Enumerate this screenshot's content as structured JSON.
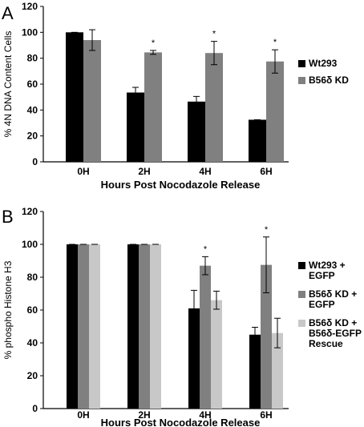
{
  "chart_data": [
    {
      "panel_label": "A",
      "type": "bar",
      "categories": [
        "0H",
        "2H",
        "4H",
        "6H"
      ],
      "xlabel": "Hours Post Nocodazole Release",
      "ylabel": "% 4N DNA Content Cells",
      "ylim": [
        0,
        120
      ],
      "yticks": [
        0,
        20,
        40,
        60,
        80,
        100,
        120
      ],
      "grid": false,
      "legend_position": "right",
      "series": [
        {
          "name": "Wt293",
          "color": "#000000",
          "values": [
            100,
            53.5,
            46.5,
            32.5
          ],
          "errors": [
            0,
            4,
            4,
            0
          ]
        },
        {
          "name": "B56δ KD",
          "color": "#808080",
          "values": [
            94,
            84.5,
            84,
            77.5
          ],
          "errors": [
            8,
            1.5,
            9,
            9
          ]
        }
      ],
      "significance": [
        {
          "category": "2H",
          "series": 1,
          "label": "*"
        },
        {
          "category": "4H",
          "series": 1,
          "label": "*"
        },
        {
          "category": "6H",
          "series": 1,
          "label": "*"
        }
      ]
    },
    {
      "panel_label": "B",
      "type": "bar",
      "categories": [
        "0H",
        "2H",
        "4H",
        "6H"
      ],
      "xlabel": "Hours Post Nocodazole Release",
      "ylabel": "% phospho Histone H3",
      "ylim": [
        0,
        120
      ],
      "yticks": [
        0,
        20,
        40,
        60,
        80,
        100,
        120
      ],
      "grid": false,
      "legend_position": "right",
      "series": [
        {
          "name": "Wt293 + EGFP",
          "legend_lines": [
            "Wt293 +",
            "EGFP"
          ],
          "color": "#000000",
          "values": [
            100,
            100,
            61,
            45
          ],
          "errors": [
            0,
            0,
            11,
            4.5
          ]
        },
        {
          "name": "B56δ KD + EGFP",
          "legend_lines": [
            "B56δ KD +",
            "EGFP"
          ],
          "color": "#808080",
          "values": [
            100,
            100,
            87,
            87.5
          ],
          "errors": [
            0,
            0,
            5.5,
            17
          ]
        },
        {
          "name": "B56δ KD + B56δ-EGFP Rescue",
          "legend_lines": [
            "B56δ KD +",
            "B56δ-EGFP",
            "Rescue"
          ],
          "color": "#c8c8c8",
          "values": [
            100,
            100,
            66,
            46
          ],
          "errors": [
            0,
            0,
            5.5,
            9
          ]
        }
      ],
      "significance": [
        {
          "category": "4H",
          "series": 1,
          "label": "*"
        },
        {
          "category": "6H",
          "series": 1,
          "label": "*"
        }
      ]
    }
  ]
}
